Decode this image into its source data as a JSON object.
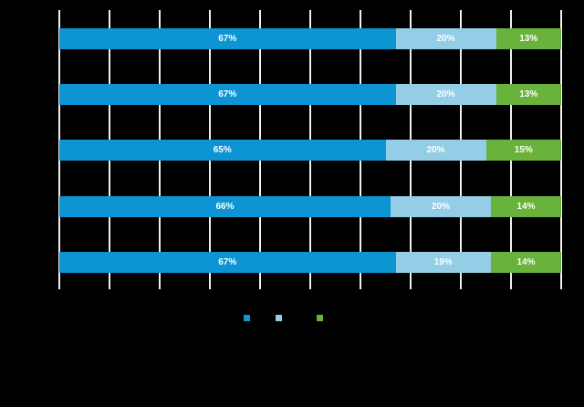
{
  "chart_data": {
    "type": "bar",
    "orientation": "horizontal",
    "stacked": true,
    "title": "",
    "xlabel": "",
    "ylabel": "",
    "xlim": [
      0,
      100
    ],
    "x_gridline_step_pct": 10,
    "grid": true,
    "legend_position": "bottom",
    "background_color": "#000000",
    "gridline_color": "#f0f0f0",
    "bar_label_color": "#ffffff",
    "series_colors": [
      "#0d94d2",
      "#93cee6",
      "#69b23c"
    ],
    "rows": [
      {
        "segments": [
          {
            "value": 67,
            "label": "67%"
          },
          {
            "value": 20,
            "label": "20%"
          },
          {
            "value": 13,
            "label": "13%"
          }
        ]
      },
      {
        "segments": [
          {
            "value": 67,
            "label": "67%"
          },
          {
            "value": 20,
            "label": "20%"
          },
          {
            "value": 13,
            "label": "13%"
          }
        ]
      },
      {
        "segments": [
          {
            "value": 65,
            "label": "65%"
          },
          {
            "value": 20,
            "label": "20%"
          },
          {
            "value": 15,
            "label": "15%"
          }
        ]
      },
      {
        "segments": [
          {
            "value": 66,
            "label": "66%"
          },
          {
            "value": 20,
            "label": "20%"
          },
          {
            "value": 14,
            "label": "14%"
          }
        ]
      },
      {
        "segments": [
          {
            "value": 67,
            "label": "67%"
          },
          {
            "value": 19,
            "label": "19%"
          },
          {
            "value": 14,
            "label": "14%"
          }
        ]
      }
    ]
  }
}
